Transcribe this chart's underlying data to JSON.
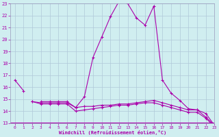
{
  "xlabel": "Windchill (Refroidissement éolien,°C)",
  "background_color": "#d0eef0",
  "grid_color": "#b0c8d8",
  "line_color": "#aa00aa",
  "x_values": [
    0,
    1,
    2,
    3,
    4,
    5,
    6,
    7,
    8,
    9,
    10,
    11,
    12,
    13,
    14,
    15,
    16,
    17,
    18,
    19,
    20,
    21,
    22,
    23
  ],
  "series1": [
    16.6,
    15.7,
    null,
    null,
    null,
    null,
    null,
    null,
    null,
    null,
    null,
    null,
    null,
    null,
    null,
    null,
    null,
    null,
    null,
    null,
    null,
    null,
    null,
    null
  ],
  "series2": [
    null,
    null,
    null,
    14.8,
    14.8,
    14.8,
    14.8,
    14.3,
    15.2,
    18.5,
    20.2,
    21.9,
    23.2,
    23.0,
    21.8,
    21.2,
    22.8,
    16.6,
    15.5,
    14.9,
    14.2,
    14.1,
    13.5,
    12.8
  ],
  "series3": [
    null,
    null,
    14.8,
    14.7,
    14.7,
    14.7,
    14.7,
    14.3,
    14.4,
    14.4,
    14.5,
    14.5,
    14.6,
    14.6,
    14.7,
    14.8,
    14.9,
    14.7,
    14.5,
    14.3,
    14.1,
    14.1,
    13.8,
    12.8
  ],
  "series4": [
    null,
    null,
    14.8,
    14.6,
    14.6,
    14.6,
    14.6,
    14.0,
    14.1,
    14.2,
    14.3,
    14.4,
    14.5,
    14.5,
    14.6,
    14.7,
    14.7,
    14.5,
    14.3,
    14.1,
    13.9,
    13.9,
    13.4,
    12.7
  ],
  "ylim": [
    13,
    23
  ],
  "xlim": [
    -0.5,
    23
  ],
  "yticks": [
    13,
    14,
    15,
    16,
    17,
    18,
    19,
    20,
    21,
    22,
    23
  ],
  "xticks": [
    0,
    1,
    2,
    3,
    4,
    5,
    6,
    7,
    8,
    9,
    10,
    11,
    12,
    13,
    14,
    15,
    16,
    17,
    18,
    19,
    20,
    21,
    22,
    23
  ]
}
